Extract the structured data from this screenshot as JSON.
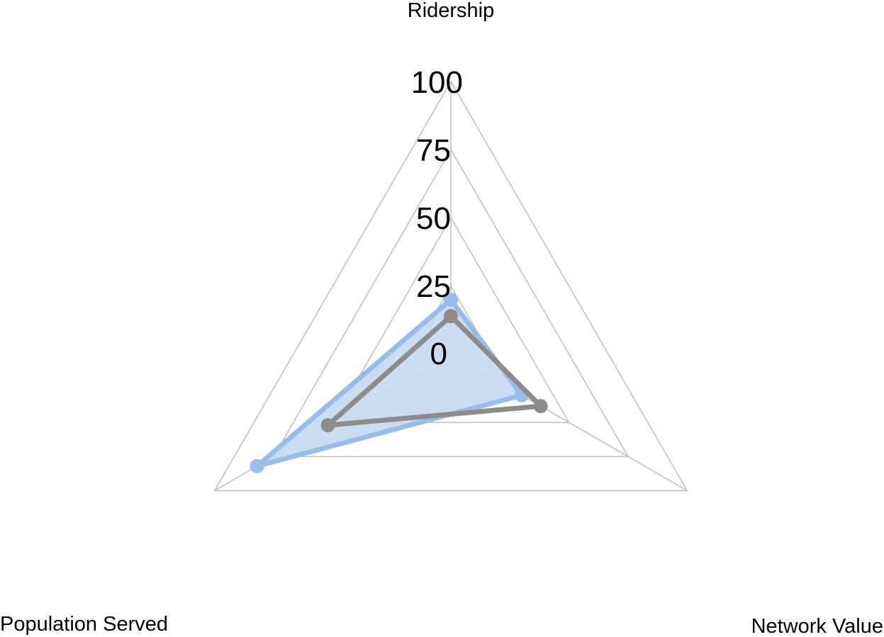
{
  "chart_data": {
    "type": "radar",
    "axes": [
      "Ridership",
      "Network Value",
      "Population Served"
    ],
    "ticks": [
      "0",
      "25",
      "50",
      "75",
      "100"
    ],
    "rlim": [
      0,
      100
    ],
    "grid": true,
    "series": [
      {
        "values": [
          20,
          30,
          82
        ],
        "color": "#99bde8",
        "fill": "#c8dbf2",
        "filled": true
      },
      {
        "values": [
          14,
          38,
          52
        ],
        "color": "#8c8c8c",
        "filled": false
      }
    ]
  }
}
